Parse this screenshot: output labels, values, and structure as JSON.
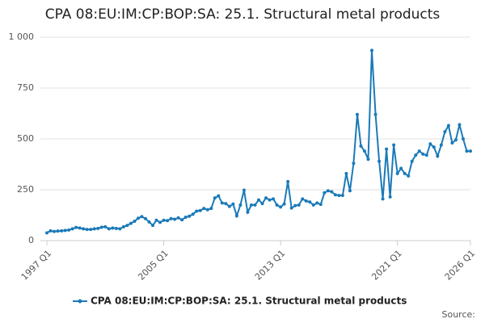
{
  "chart_data": {
    "type": "line",
    "title": "CPA 08:EU:IM:CP:BOP:SA: 25.1. Structural metal products",
    "categories": [
      "1997 Q1",
      null,
      null,
      null,
      null,
      null,
      null,
      null,
      null,
      null,
      null,
      null,
      null,
      null,
      null,
      null,
      null,
      null,
      null,
      null,
      null,
      null,
      null,
      null,
      null,
      null,
      null,
      null,
      null,
      null,
      null,
      null,
      "2005 Q1",
      null,
      null,
      null,
      null,
      null,
      null,
      null,
      null,
      null,
      null,
      null,
      null,
      null,
      null,
      null,
      null,
      null,
      null,
      null,
      null,
      null,
      null,
      null,
      null,
      null,
      null,
      null,
      null,
      null,
      null,
      null,
      "2013 Q1",
      null,
      null,
      null,
      null,
      null,
      null,
      null,
      null,
      null,
      null,
      null,
      null,
      null,
      null,
      null,
      null,
      null,
      null,
      null,
      null,
      null,
      null,
      null,
      null,
      null,
      null,
      null,
      null,
      null,
      null,
      null,
      "2021 Q1",
      null,
      null,
      null,
      null,
      null,
      null,
      null,
      null,
      null,
      null,
      null,
      null,
      null,
      null,
      null,
      null,
      null,
      null,
      null,
      "2026 Q1"
    ],
    "series": [
      {
        "name": "CPA 08:EU:IM:CP:BOP:SA: 25.1. Structural metal products",
        "color": "#1a7ab8",
        "values": [
          38,
          48,
          45,
          47,
          48,
          50,
          52,
          58,
          65,
          62,
          58,
          55,
          55,
          58,
          60,
          66,
          68,
          58,
          62,
          60,
          58,
          68,
          75,
          85,
          95,
          110,
          118,
          108,
          92,
          75,
          100,
          90,
          100,
          98,
          108,
          105,
          112,
          102,
          115,
          120,
          130,
          145,
          148,
          158,
          152,
          158,
          210,
          220,
          185,
          182,
          168,
          180,
          122,
          175,
          248,
          140,
          175,
          175,
          200,
          182,
          210,
          200,
          205,
          175,
          165,
          180,
          290,
          160,
          172,
          175,
          205,
          195,
          190,
          175,
          185,
          178,
          235,
          245,
          240,
          225,
          222,
          222,
          330,
          245,
          380,
          620,
          465,
          440,
          400,
          935,
          620,
          390,
          205,
          450,
          215,
          470,
          330,
          355,
          330,
          318,
          390,
          420,
          440,
          425,
          420,
          475,
          460,
          415,
          470,
          535,
          565,
          480,
          495,
          570,
          500,
          440,
          440
        ]
      }
    ],
    "ylim": [
      0,
      1000
    ],
    "yticks": [
      0,
      250,
      500,
      750,
      {
        "value": 1000,
        "label": "1 000"
      }
    ],
    "grid": true,
    "legend": "bottom",
    "source": "Source:"
  }
}
